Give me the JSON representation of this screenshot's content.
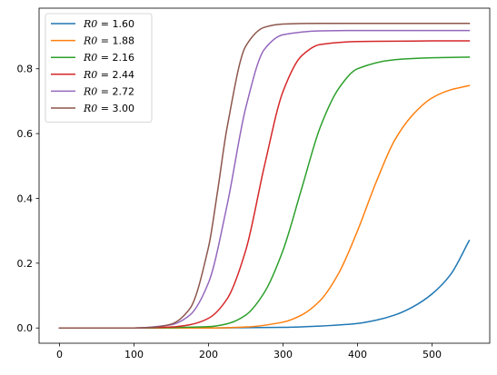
{
  "chart_data": {
    "type": "line",
    "title": "",
    "xlabel": "",
    "ylabel": "",
    "xlim": [
      -27.5,
      577.5
    ],
    "ylim": [
      -0.047,
      0.987
    ],
    "xticks": [
      0,
      100,
      200,
      300,
      400,
      500
    ],
    "xtick_labels": [
      "0",
      "100",
      "200",
      "300",
      "400",
      "500"
    ],
    "yticks": [
      0.0,
      0.2,
      0.4,
      0.6,
      0.8
    ],
    "ytick_labels": [
      "0.0",
      "0.2",
      "0.4",
      "0.6",
      "0.8"
    ],
    "grid": false,
    "legend_position": "top-left",
    "series": [
      {
        "name": "R0 = 1.60",
        "legend_var": "R0",
        "legend_value": "1.60",
        "color": "#1f77b4",
        "x": [
          0,
          100,
          200,
          300,
          350,
          400,
          425,
          450,
          475,
          500,
          525,
          550
        ],
        "y": [
          0.0,
          0.0,
          0.0,
          0.002,
          0.006,
          0.014,
          0.024,
          0.04,
          0.066,
          0.105,
          0.165,
          0.27
        ]
      },
      {
        "name": "R0 = 1.88",
        "legend_var": "R0",
        "legend_value": "1.88",
        "color": "#ff7f0e",
        "x": [
          0,
          100,
          200,
          250,
          300,
          325,
          350,
          375,
          400,
          425,
          450,
          475,
          500,
          525,
          550
        ],
        "y": [
          0.0,
          0.0,
          0.0,
          0.003,
          0.018,
          0.04,
          0.085,
          0.17,
          0.3,
          0.45,
          0.58,
          0.66,
          0.71,
          0.735,
          0.748
        ]
      },
      {
        "name": "R0 = 2.16",
        "legend_var": "R0",
        "legend_value": "2.16",
        "color": "#2ca02c",
        "x": [
          0,
          100,
          200,
          225,
          250,
          275,
          300,
          325,
          350,
          375,
          400,
          450,
          500,
          550
        ],
        "y": [
          0.0,
          0.0,
          0.004,
          0.013,
          0.04,
          0.11,
          0.24,
          0.43,
          0.62,
          0.74,
          0.8,
          0.828,
          0.834,
          0.836
        ]
      },
      {
        "name": "R0 = 2.44",
        "legend_var": "R0",
        "legend_value": "2.44",
        "color": "#d62728",
        "x": [
          0,
          100,
          150,
          175,
          200,
          225,
          250,
          275,
          300,
          325,
          350,
          400,
          450,
          500,
          550
        ],
        "y": [
          0.0,
          0.0,
          0.003,
          0.01,
          0.03,
          0.09,
          0.24,
          0.5,
          0.73,
          0.84,
          0.875,
          0.884,
          0.885,
          0.886,
          0.886
        ]
      },
      {
        "name": "R0 = 2.72",
        "legend_var": "R0",
        "legend_value": "2.72",
        "color": "#9467bd",
        "x": [
          0,
          100,
          150,
          175,
          200,
          225,
          250,
          275,
          300,
          350,
          400,
          450,
          500,
          550
        ],
        "y": [
          0.0,
          0.0,
          0.01,
          0.04,
          0.14,
          0.38,
          0.68,
          0.86,
          0.905,
          0.917,
          0.918,
          0.918,
          0.918,
          0.918
        ]
      },
      {
        "name": "R0 = 3.00",
        "legend_var": "R0",
        "legend_value": "3.00",
        "color": "#8c564b",
        "x": [
          0,
          100,
          125,
          150,
          175,
          200,
          212,
          225,
          250,
          275,
          300,
          350,
          400,
          450,
          500,
          550
        ],
        "y": [
          0.0,
          0.0,
          0.002,
          0.012,
          0.06,
          0.25,
          0.42,
          0.62,
          0.87,
          0.928,
          0.938,
          0.94,
          0.94,
          0.94,
          0.94,
          0.94
        ]
      }
    ]
  }
}
